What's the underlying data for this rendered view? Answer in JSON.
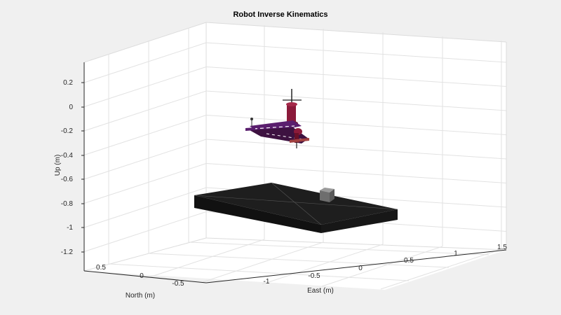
{
  "chart_data": {
    "type": "3d-scene",
    "title": "Robot Inverse Kinematics",
    "xlabel": "East (m)",
    "ylabel": "North (m)",
    "zlabel": "Up (m)",
    "x_ticks": [
      "-1",
      "-0.5",
      "0",
      "0.5",
      "1",
      "1.5"
    ],
    "y_ticks": [
      "0.5",
      "0",
      "-0.5"
    ],
    "z_ticks": [
      "0.2",
      "0",
      "-0.2",
      "-0.4",
      "-0.6",
      "-0.8",
      "-1",
      "-1.2"
    ],
    "grid": true,
    "colors": {
      "background": "#f0f0f0",
      "plot_area": "#ffffff",
      "table": "#1a1a1a",
      "box_object": "#7a7a7a",
      "robot_arm": "#8b1a3a",
      "robot_link": "#5a1e6e"
    }
  }
}
